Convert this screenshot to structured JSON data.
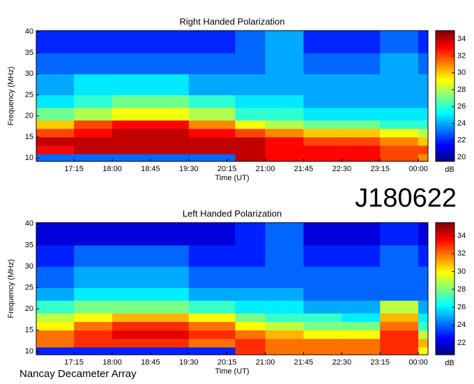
{
  "header": {
    "code": "J180622"
  },
  "footer": "Nancay Decameter Array",
  "chart_data": [
    {
      "type": "heatmap",
      "title": "Right Handed Polarization",
      "x_label": "Time (UT)",
      "y_label": "Frequency (MHz)",
      "colorbar_label": "dB",
      "colormap": "jet",
      "x_edges": [
        16.5,
        17.25,
        18,
        18.75,
        19.5,
        20.41,
        21,
        21.75,
        22.5,
        23.25,
        24,
        24.2
      ],
      "y_edges": [
        9.2,
        11,
        13,
        15,
        17,
        19,
        22,
        25,
        30,
        35,
        40.3
      ],
      "z": [
        [
          23,
          23,
          23,
          23,
          23,
          34,
          33,
          33,
          33,
          32,
          31
        ],
        [
          33,
          34,
          34,
          34,
          34,
          34,
          33,
          33,
          33,
          32,
          32
        ],
        [
          34,
          34,
          34,
          34,
          34,
          34,
          33,
          32,
          32,
          31,
          30
        ],
        [
          32,
          33,
          34,
          34,
          33,
          32,
          31,
          30,
          30,
          29,
          28
        ],
        [
          30,
          32,
          33,
          33,
          31,
          29,
          28,
          27,
          27,
          26,
          26
        ],
        [
          27,
          28,
          29,
          29,
          28,
          26,
          26,
          25,
          25,
          25,
          25
        ],
        [
          25,
          26,
          27,
          27,
          26,
          25,
          25,
          24,
          24,
          24,
          24
        ],
        [
          24,
          25,
          25,
          25,
          24,
          24,
          24,
          24,
          24,
          24,
          24
        ],
        [
          23,
          23,
          23,
          23,
          23,
          23,
          24,
          23,
          23,
          24,
          23
        ],
        [
          22,
          22,
          22,
          22,
          22,
          23,
          24,
          22,
          22,
          23,
          22
        ]
      ],
      "xlim": [
        16.51,
        24.19
      ],
      "ylim": [
        9.2,
        40.3
      ],
      "xticks": [
        {
          "value": 17.25,
          "label": "17:15"
        },
        {
          "value": 18,
          "label": "18:00"
        },
        {
          "value": 18.75,
          "label": "18:45"
        },
        {
          "value": 19.5,
          "label": "19:30"
        },
        {
          "value": 20.25,
          "label": "20:15"
        },
        {
          "value": 21,
          "label": "21:00"
        },
        {
          "value": 21.75,
          "label": "21:45"
        },
        {
          "value": 22.5,
          "label": "22:30"
        },
        {
          "value": 23.25,
          "label": "23:15"
        },
        {
          "value": 24,
          "label": "00:00"
        }
      ],
      "yticks": [
        10,
        15,
        20,
        25,
        30,
        35,
        40
      ],
      "clim": [
        19.5,
        35
      ],
      "cticks": [
        20,
        22,
        24,
        26,
        28,
        30,
        32,
        34
      ]
    },
    {
      "type": "heatmap",
      "title": "Left Handed Polarization",
      "x_label": "Time (UT)",
      "y_label": "Frequency (MHz)",
      "colorbar_label": "dB",
      "colormap": "jet",
      "x_edges": [
        16.5,
        17.25,
        18,
        18.75,
        19.5,
        20.41,
        21,
        21.75,
        22.5,
        23.25,
        24,
        24.2
      ],
      "y_edges": [
        9.2,
        11,
        13,
        15,
        17,
        19,
        22,
        25,
        30,
        35,
        40.3
      ],
      "z": [
        [
          23,
          23,
          23,
          23,
          23,
          33,
          32,
          32,
          32,
          33,
          30
        ],
        [
          32,
          33,
          33,
          33,
          32,
          33,
          32,
          32,
          32,
          33,
          31
        ],
        [
          32,
          33,
          34,
          34,
          33,
          32,
          31,
          30,
          30,
          33,
          29
        ],
        [
          30,
          32,
          33,
          33,
          32,
          30,
          29,
          28,
          28,
          32,
          27
        ],
        [
          29,
          30,
          31,
          31,
          30,
          28,
          27,
          27,
          26,
          31,
          26
        ],
        [
          27,
          28,
          28,
          28,
          27,
          26,
          26,
          25,
          25,
          29,
          25
        ],
        [
          25,
          26,
          26,
          26,
          25,
          25,
          25,
          24,
          24,
          24,
          24
        ],
        [
          24,
          25,
          25,
          25,
          24,
          24,
          24,
          24,
          24,
          24,
          24
        ],
        [
          23,
          24,
          24,
          24,
          23,
          23,
          24,
          23,
          23,
          24,
          23
        ],
        [
          22,
          22,
          22,
          22,
          22,
          23,
          24,
          22,
          22,
          23,
          22
        ]
      ],
      "xlim": [
        16.51,
        24.19
      ],
      "ylim": [
        9.2,
        40.3
      ],
      "xticks": [
        {
          "value": 17.25,
          "label": "17:15"
        },
        {
          "value": 18,
          "label": "18:00"
        },
        {
          "value": 18.75,
          "label": "18:45"
        },
        {
          "value": 19.5,
          "label": "19:30"
        },
        {
          "value": 20.25,
          "label": "20:15"
        },
        {
          "value": 21,
          "label": "21:00"
        },
        {
          "value": 21.75,
          "label": "21:45"
        },
        {
          "value": 22.5,
          "label": "22:30"
        },
        {
          "value": 23.25,
          "label": "23:15"
        },
        {
          "value": 24,
          "label": "00:00"
        }
      ],
      "yticks": [
        10,
        15,
        20,
        25,
        30,
        35,
        40
      ],
      "clim": [
        20.67,
        35.5
      ],
      "cticks": [
        22,
        24,
        26,
        28,
        30,
        32,
        34
      ]
    }
  ]
}
